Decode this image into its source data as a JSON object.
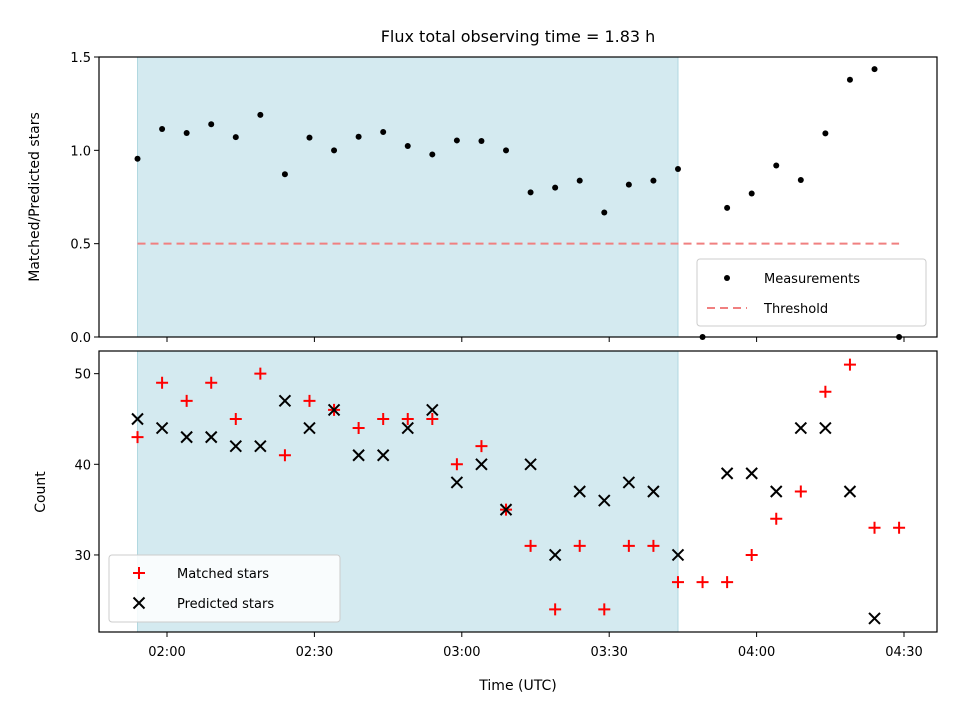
{
  "chart_data": [
    {
      "type": "scatter",
      "title": "Flux total observing time = 1.83 h",
      "xlabel": "",
      "ylabel": "Matched/Predicted stars",
      "ylim": [
        0,
        1.5
      ],
      "yticks": [
        "0.0",
        "0.5",
        "1.0",
        "1.5"
      ],
      "shaded_region": {
        "from": "01:54",
        "to": "03:44",
        "color": "#d4eaf0"
      },
      "legend_position": "bottom-right",
      "series": [
        {
          "name": "Measurements",
          "marker": "dot",
          "color": "#000000",
          "points": [
            [
              "01:54",
              0.955
            ],
            [
              "01:59",
              1.114
            ],
            [
              "02:04",
              1.093
            ],
            [
              "02:09",
              1.14
            ],
            [
              "02:14",
              1.071
            ],
            [
              "02:19",
              1.19
            ],
            [
              "02:24",
              0.872
            ],
            [
              "02:29",
              1.068
            ],
            [
              "02:34",
              1.0
            ],
            [
              "02:39",
              1.073
            ],
            [
              "02:44",
              1.098
            ],
            [
              "02:49",
              1.023
            ],
            [
              "02:54",
              0.978
            ],
            [
              "02:59",
              1.053
            ],
            [
              "03:04",
              1.05
            ],
            [
              "03:09",
              1.0
            ],
            [
              "03:14",
              0.775
            ],
            [
              "03:19",
              0.8
            ],
            [
              "03:24",
              0.838
            ],
            [
              "03:29",
              0.667
            ],
            [
              "03:34",
              0.816
            ],
            [
              "03:39",
              0.838
            ],
            [
              "03:44",
              0.9
            ],
            [
              "03:49",
              0.0
            ],
            [
              "03:54",
              0.692
            ],
            [
              "03:59",
              0.769
            ],
            [
              "04:04",
              0.919
            ],
            [
              "04:09",
              0.841
            ],
            [
              "04:14",
              1.091
            ],
            [
              "04:19",
              1.378
            ],
            [
              "04:24",
              1.435
            ],
            [
              "04:29",
              0.0
            ]
          ]
        },
        {
          "name": "Threshold",
          "marker": "dashed-line",
          "color": "#f08080",
          "from": "01:54",
          "to": "04:29",
          "value": 0.5
        }
      ]
    },
    {
      "type": "scatter",
      "title": "",
      "xlabel": "Time (UTC)",
      "ylabel": "Count",
      "ylim": [
        21.5,
        52.5
      ],
      "yticks": [
        "30",
        "40",
        "50"
      ],
      "xticks": [
        "02:00",
        "02:30",
        "03:00",
        "03:30",
        "04:00",
        "04:30"
      ],
      "shaded_region": {
        "from": "01:54",
        "to": "03:44",
        "color": "#d4eaf0"
      },
      "legend_position": "bottom-left",
      "series": [
        {
          "name": "Matched stars",
          "marker": "plus",
          "color": "#ff0000",
          "points": [
            [
              "01:54",
              43
            ],
            [
              "01:59",
              49
            ],
            [
              "02:04",
              47
            ],
            [
              "02:09",
              49
            ],
            [
              "02:14",
              45
            ],
            [
              "02:19",
              50
            ],
            [
              "02:24",
              41
            ],
            [
              "02:29",
              47
            ],
            [
              "02:34",
              46
            ],
            [
              "02:39",
              44
            ],
            [
              "02:44",
              45
            ],
            [
              "02:49",
              45
            ],
            [
              "02:54",
              45
            ],
            [
              "02:59",
              40
            ],
            [
              "03:04",
              42
            ],
            [
              "03:09",
              35
            ],
            [
              "03:14",
              31
            ],
            [
              "03:19",
              24
            ],
            [
              "03:24",
              31
            ],
            [
              "03:29",
              24
            ],
            [
              "03:34",
              31
            ],
            [
              "03:39",
              31
            ],
            [
              "03:44",
              27
            ],
            [
              "03:49",
              27
            ],
            [
              "03:54",
              27
            ],
            [
              "03:59",
              30
            ],
            [
              "04:04",
              34
            ],
            [
              "04:09",
              37
            ],
            [
              "04:14",
              48
            ],
            [
              "04:19",
              51
            ],
            [
              "04:24",
              33
            ],
            [
              "04:29",
              33
            ]
          ]
        },
        {
          "name": "Predicted stars",
          "marker": "x",
          "color": "#000000",
          "points": [
            [
              "01:54",
              45
            ],
            [
              "01:59",
              44
            ],
            [
              "02:04",
              43
            ],
            [
              "02:09",
              43
            ],
            [
              "02:14",
              42
            ],
            [
              "02:19",
              42
            ],
            [
              "02:24",
              47
            ],
            [
              "02:29",
              44
            ],
            [
              "02:34",
              46
            ],
            [
              "02:39",
              41
            ],
            [
              "02:44",
              41
            ],
            [
              "02:49",
              44
            ],
            [
              "02:54",
              46
            ],
            [
              "02:59",
              38
            ],
            [
              "03:04",
              40
            ],
            [
              "03:09",
              35
            ],
            [
              "03:14",
              40
            ],
            [
              "03:19",
              30
            ],
            [
              "03:24",
              37
            ],
            [
              "03:29",
              36
            ],
            [
              "03:34",
              38
            ],
            [
              "03:39",
              37
            ],
            [
              "03:44",
              30
            ],
            [
              "03:54",
              39
            ],
            [
              "03:59",
              39
            ],
            [
              "04:04",
              37
            ],
            [
              "04:09",
              44
            ],
            [
              "04:14",
              44
            ],
            [
              "04:19",
              37
            ],
            [
              "04:24",
              23
            ]
          ]
        }
      ]
    }
  ]
}
